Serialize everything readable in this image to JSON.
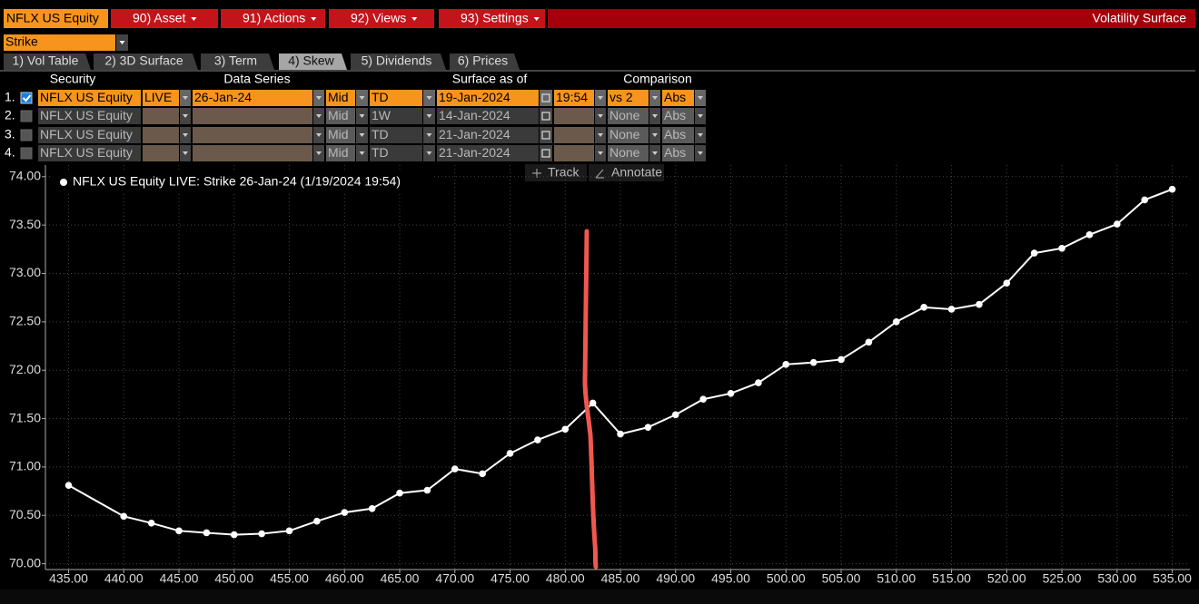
{
  "header": {
    "security": "NFLX US Equity",
    "menus": [
      "90) Asset",
      "91) Actions",
      "92) Views",
      "93) Settings"
    ],
    "function_title": "Volatility Surface"
  },
  "selector": "Strike",
  "tabs": [
    {
      "label": "1) Vol Table"
    },
    {
      "label": "2) 3D Surface"
    },
    {
      "label": "3) Term"
    },
    {
      "label": "4) Skew",
      "active": true
    },
    {
      "label": "5) Dividends"
    },
    {
      "label": "6) Prices"
    }
  ],
  "table": {
    "columns": [
      "Security",
      "Data Series",
      "Surface as of",
      "Comparison"
    ],
    "rows": [
      {
        "index": "1.",
        "checked": true,
        "security": "NFLX US Equity",
        "source": "LIVE",
        "expiry": "26-Jan-24",
        "side": "Mid",
        "mode": "TD",
        "date": "19-Jan-2024",
        "time": "19:54",
        "comparison": "vs 2",
        "scale": "Abs"
      },
      {
        "index": "2.",
        "checked": false,
        "security": "NFLX US Equity",
        "side": "Mid",
        "mode": "1W",
        "date": "14-Jan-2024",
        "comparison": "None",
        "scale": "Abs"
      },
      {
        "index": "3.",
        "checked": false,
        "security": "NFLX US Equity",
        "side": "Mid",
        "mode": "TD",
        "date": "21-Jan-2024",
        "comparison": "None",
        "scale": "Abs"
      },
      {
        "index": "4.",
        "checked": false,
        "security": "NFLX US Equity",
        "side": "Mid",
        "mode": "TD",
        "date": "21-Jan-2024",
        "comparison": "None",
        "scale": "Abs"
      }
    ]
  },
  "tools": [
    "Track",
    "Annotate"
  ],
  "chart_data": {
    "type": "line",
    "x": [
      435,
      440,
      442.5,
      445,
      447.5,
      450,
      452.5,
      455,
      457.5,
      460,
      462.5,
      465,
      467.5,
      470,
      472.5,
      475,
      477.5,
      480,
      482.5,
      485,
      487.5,
      490,
      492.5,
      495,
      497.5,
      500,
      502.5,
      505,
      507.5,
      510,
      512.5,
      515,
      517.5,
      520,
      522.5,
      525,
      527.5,
      530,
      532.5,
      535
    ],
    "series": [
      {
        "name": "NFLX US Equity LIVE: Strike 26-Jan-24 (1/19/2024 19:54)",
        "color": "#ffffff",
        "values": [
          70.81,
          70.49,
          70.42,
          70.34,
          70.32,
          70.3,
          70.31,
          70.34,
          70.44,
          70.53,
          70.57,
          70.73,
          70.76,
          70.98,
          70.93,
          71.14,
          71.28,
          71.39,
          71.66,
          71.34,
          71.41,
          71.54,
          71.7,
          71.76,
          71.87,
          72.06,
          72.08,
          72.11,
          72.29,
          72.5,
          72.65,
          72.63,
          72.68,
          72.9,
          73.21,
          73.26,
          73.4,
          73.51,
          73.76,
          73.87
        ]
      }
    ],
    "xlim": [
      432.9,
      536.6
    ],
    "ylim": [
      69.94,
      74.12
    ],
    "xticks": [
      {
        "value": 435,
        "label": "435.00"
      },
      {
        "value": 440,
        "label": "440.00"
      },
      {
        "value": 445,
        "label": "445.00"
      },
      {
        "value": 450,
        "label": "450.00"
      },
      {
        "value": 455,
        "label": "455.00"
      },
      {
        "value": 460,
        "label": "460.00"
      },
      {
        "value": 465,
        "label": "465.00"
      },
      {
        "value": 470,
        "label": "470.00"
      },
      {
        "value": 475,
        "label": "475.00"
      },
      {
        "value": 480,
        "label": "480.00"
      },
      {
        "value": 485,
        "label": "485.00"
      },
      {
        "value": 490,
        "label": "490.00"
      },
      {
        "value": 495,
        "label": "495.00"
      },
      {
        "value": 500,
        "label": "500.00"
      },
      {
        "value": 505,
        "label": "505.00"
      },
      {
        "value": 510,
        "label": "510.00"
      },
      {
        "value": 515,
        "label": "515.00"
      },
      {
        "value": 520,
        "label": "520.00"
      },
      {
        "value": 525,
        "label": "525.00"
      },
      {
        "value": 530,
        "label": "530.00"
      },
      {
        "value": 535,
        "label": "535.00"
      }
    ],
    "yticks": [
      {
        "value": 70,
        "label": "70.00"
      },
      {
        "value": 70.5,
        "label": "70.50"
      },
      {
        "value": 71,
        "label": "71.00"
      },
      {
        "value": 71.5,
        "label": "71.50"
      },
      {
        "value": 72,
        "label": "72.00"
      },
      {
        "value": 72.5,
        "label": "72.50"
      },
      {
        "value": 73,
        "label": "73.00"
      },
      {
        "value": 73.5,
        "label": "73.50"
      },
      {
        "value": 74,
        "label": "74.00"
      }
    ],
    "grid": true
  }
}
